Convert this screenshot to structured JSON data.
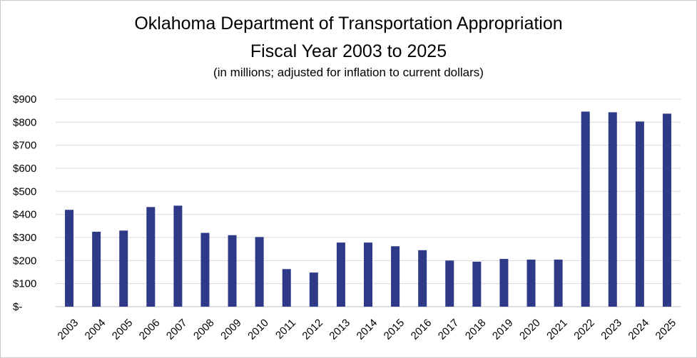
{
  "chart_data": {
    "type": "bar",
    "title": "Oklahoma Department of Transportation Appropriation",
    "title_line2": "Fiscal Year 2003 to 2025",
    "subtitle": "(in millions; adjusted for inflation to current dollars)",
    "categories": [
      "2003",
      "2004",
      "2005",
      "2006",
      "2007",
      "2008",
      "2009",
      "2010",
      "2011",
      "2012",
      "2013",
      "2014",
      "2015",
      "2016",
      "2017",
      "2018",
      "2019",
      "2020",
      "2021",
      "2022",
      "2023",
      "2024",
      "2025"
    ],
    "values": [
      420,
      325,
      330,
      432,
      438,
      320,
      310,
      302,
      163,
      148,
      278,
      278,
      262,
      245,
      200,
      195,
      207,
      204,
      204,
      846,
      843,
      803,
      837
    ],
    "ylim": [
      0,
      900
    ],
    "y_ticks": [
      0,
      100,
      200,
      300,
      400,
      500,
      600,
      700,
      800,
      900
    ],
    "y_tick_labels": [
      "$-",
      "$100",
      "$200",
      "$300",
      "$400",
      "$500",
      "$600",
      "$700",
      "$800",
      "$900"
    ],
    "xlabel": "",
    "ylabel": "",
    "grid": true,
    "legend": "none",
    "bar_color": "#2e3a87",
    "grid_color": "#d9d9d9"
  }
}
